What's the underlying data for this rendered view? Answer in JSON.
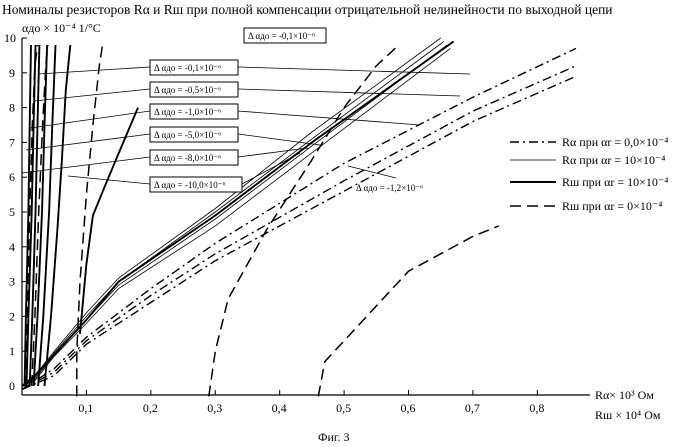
{
  "figure": {
    "title": "Номиналы резисторов  Rα  и Rш  при полной компенсации отрицательной нелинейности по выходной цепи",
    "ylabel": "αдо × 10⁻⁴ 1/°С",
    "xlabel_line1": "Rα× 10³ Ом",
    "xlabel_line2": "Rш × 10⁴ Ом",
    "caption": "Фиг. 3"
  },
  "chart_data": {
    "type": "line",
    "title": "Номиналы резисторов  Rα  и Rш  при полной компенсации отрицательной нелинейности по выходной цепи",
    "xlabel": "Rα× 10³ Ом / Rш × 10⁴ Ом",
    "ylabel": "αдо × 10⁻⁴ 1/°С",
    "xlim": [
      0,
      0.86
    ],
    "ylim": [
      -0.3,
      10
    ],
    "grid": false,
    "legend_position": "right",
    "x_ticks": [
      "0",
      "0,1",
      "0,2",
      "0,3",
      "0,4",
      "0,5",
      "0,6",
      "0,7",
      "0,8"
    ],
    "y_ticks": [
      "0",
      "1",
      "2",
      "3",
      "4",
      "5",
      "6",
      "7",
      "8",
      "9",
      "10"
    ],
    "legend": [
      {
        "style": "dashdot",
        "label": "Rα при αr = 0,0×10⁻⁴"
      },
      {
        "style": "thin",
        "label": "Rα при αr = 10×10⁻⁴"
      },
      {
        "style": "thick",
        "label": "Rш при αr = 10×10⁻⁴"
      },
      {
        "style": "dashed",
        "label": "Rш при αr = 0×10⁻⁴"
      }
    ],
    "annotations": [
      {
        "label": "Δ αдо = -0,1×10⁻⁶",
        "boxed": true
      },
      {
        "label": "Δ αдо = -0,1×10⁻⁶",
        "boxed": true
      },
      {
        "label": "Δ αдо = -0,5×10⁻⁶",
        "boxed": true
      },
      {
        "label": "Δ αдо = -1,0×10⁻⁶",
        "boxed": true
      },
      {
        "label": "Δ αдо = -5,0×10⁻⁶",
        "boxed": true
      },
      {
        "label": "Δ αдо = -8,0×10⁻⁶",
        "boxed": true
      },
      {
        "label": "Δ αдо = -10,0×10⁻⁶",
        "boxed": true
      },
      {
        "label": "Δ αдо = -1,2×10⁻⁶",
        "boxed": false
      }
    ],
    "series": [
      {
        "style": "thin",
        "x": [
          0,
          0.02,
          0.05,
          0.1,
          0.15,
          0.3,
          0.45,
          0.65
        ],
        "y": [
          0,
          0.3,
          1.0,
          2.1,
          3.1,
          5.1,
          7.3,
          10
        ]
      },
      {
        "style": "thin",
        "x": [
          0,
          0.02,
          0.05,
          0.1,
          0.15,
          0.3,
          0.45,
          0.655
        ],
        "y": [
          0,
          0.25,
          0.95,
          2.0,
          3.0,
          5.0,
          7.1,
          9.9
        ]
      },
      {
        "style": "thin",
        "x": [
          0,
          0.02,
          0.05,
          0.1,
          0.15,
          0.3,
          0.45,
          0.66
        ],
        "y": [
          0,
          0.2,
          0.9,
          1.9,
          2.9,
          4.8,
          6.9,
          9.8
        ]
      },
      {
        "style": "thin",
        "x": [
          0,
          0.02,
          0.05,
          0.1,
          0.15,
          0.3,
          0.45,
          0.665
        ],
        "y": [
          0,
          0.15,
          0.85,
          1.8,
          2.8,
          4.6,
          6.7,
          9.7
        ]
      },
      {
        "style": "thick",
        "x": [
          0,
          0.02,
          0.05,
          0.1,
          0.15,
          0.3,
          0.45,
          0.67
        ],
        "y": [
          0,
          0.3,
          0.9,
          1.9,
          3.0,
          4.9,
          7.0,
          9.9
        ]
      },
      {
        "style": "dashdot",
        "x": [
          0,
          0.05,
          0.1,
          0.2,
          0.3,
          0.5,
          0.7,
          0.86
        ],
        "y": [
          -0.1,
          0.5,
          1.4,
          2.8,
          4.1,
          6.4,
          8.3,
          9.7
        ]
      },
      {
        "style": "dashdot",
        "x": [
          0,
          0.05,
          0.1,
          0.2,
          0.3,
          0.5,
          0.7,
          0.86
        ],
        "y": [
          -0.1,
          0.4,
          1.3,
          2.6,
          3.8,
          5.9,
          7.9,
          9.2
        ]
      },
      {
        "style": "dashdot",
        "x": [
          0,
          0.05,
          0.1,
          0.2,
          0.3,
          0.5,
          0.7,
          0.86
        ],
        "y": [
          -0.1,
          0.3,
          1.2,
          2.4,
          3.6,
          5.6,
          7.6,
          8.9
        ]
      },
      {
        "style": "thick",
        "x": [
          0.004,
          0.006,
          0.01,
          0.012,
          0.014
        ],
        "y": [
          0,
          2.0,
          5.0,
          7.5,
          9.8
        ]
      },
      {
        "style": "thick",
        "x": [
          0.007,
          0.01,
          0.015,
          0.018,
          0.021
        ],
        "y": [
          0,
          2.0,
          5.0,
          7.5,
          9.8
        ]
      },
      {
        "style": "thick",
        "x": [
          0.012,
          0.016,
          0.021,
          0.024,
          0.027
        ],
        "y": [
          0,
          2.0,
          5.0,
          7.5,
          9.8
        ]
      },
      {
        "style": "thick",
        "x": [
          0.018,
          0.024,
          0.031,
          0.035,
          0.039
        ],
        "y": [
          0,
          2.0,
          5.0,
          7.5,
          9.8
        ]
      },
      {
        "style": "thick",
        "x": [
          0.025,
          0.033,
          0.042,
          0.047,
          0.052
        ],
        "y": [
          0,
          2.0,
          5.0,
          7.5,
          9.8
        ]
      },
      {
        "style": "thick",
        "x": [
          0.035,
          0.045,
          0.055,
          0.062,
          0.068,
          0.075
        ],
        "y": [
          0,
          2.0,
          4.5,
          6.5,
          8.5,
          9.8
        ]
      },
      {
        "style": "thick",
        "x": [
          0.09,
          0.095,
          0.1,
          0.11,
          0.13,
          0.155,
          0.18
        ],
        "y": [
          1.5,
          2.5,
          3.5,
          4.9,
          5.8,
          6.9,
          8.0
        ]
      },
      {
        "style": "dashed",
        "x": [
          0.005,
          0.008,
          0.012,
          0.016,
          0.02,
          0.024
        ],
        "y": [
          0,
          2.0,
          5.0,
          7.5,
          9.2,
          9.8
        ]
      },
      {
        "style": "dashed",
        "x": [
          0.015,
          0.02,
          0.026,
          0.032,
          0.037,
          0.04
        ],
        "y": [
          0,
          2.0,
          5.0,
          7.5,
          9.2,
          9.8
        ]
      },
      {
        "style": "dashed",
        "x": [
          0.085,
          0.085,
          0.09,
          0.1,
          0.11,
          0.12,
          0.125
        ],
        "y": [
          -0.3,
          1.0,
          3.0,
          5.5,
          7.5,
          9.2,
          9.8
        ]
      },
      {
        "style": "dashed",
        "x": [
          0.29,
          0.3,
          0.32,
          0.38,
          0.45,
          0.5,
          0.55,
          0.585
        ],
        "y": [
          -0.3,
          1.0,
          2.5,
          4.5,
          6.5,
          8.0,
          9.2,
          9.8
        ]
      },
      {
        "style": "dashed",
        "x": [
          0.46,
          0.47,
          0.5,
          0.55,
          0.6,
          0.65,
          0.7,
          0.74
        ],
        "y": [
          -0.3,
          0.7,
          1.3,
          2.3,
          3.3,
          3.8,
          4.3,
          4.6
        ]
      }
    ]
  }
}
